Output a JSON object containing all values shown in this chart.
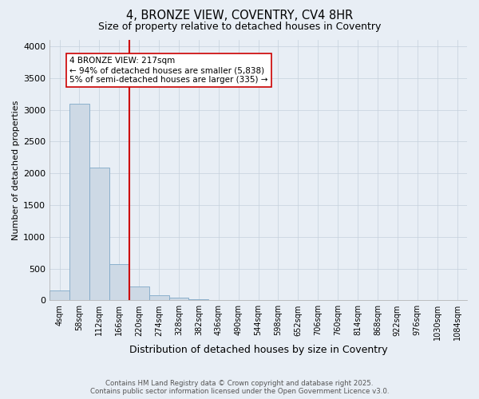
{
  "title": "4, BRONZE VIEW, COVENTRY, CV4 8HR",
  "subtitle": "Size of property relative to detached houses in Coventry",
  "xlabel": "Distribution of detached houses by size in Coventry",
  "ylabel": "Number of detached properties",
  "footer_line1": "Contains HM Land Registry data © Crown copyright and database right 2025.",
  "footer_line2": "Contains public sector information licensed under the Open Government Licence v3.0.",
  "categories": [
    "4sqm",
    "58sqm",
    "112sqm",
    "166sqm",
    "220sqm",
    "274sqm",
    "328sqm",
    "382sqm",
    "436sqm",
    "490sqm",
    "544sqm",
    "598sqm",
    "652sqm",
    "706sqm",
    "760sqm",
    "814sqm",
    "868sqm",
    "922sqm",
    "976sqm",
    "1030sqm",
    "1084sqm"
  ],
  "values": [
    150,
    3100,
    2090,
    570,
    220,
    80,
    40,
    20,
    0,
    0,
    0,
    0,
    0,
    0,
    0,
    0,
    0,
    0,
    0,
    0,
    0
  ],
  "bar_color": "#cdd9e5",
  "bar_edgecolor": "#7fa8c8",
  "vline_x": 4.0,
  "vline_color": "#cc0000",
  "annotation_text": "4 BRONZE VIEW: 217sqm\n← 94% of detached houses are smaller (5,838)\n5% of semi-detached houses are larger (335) →",
  "ylim": [
    0,
    4100
  ],
  "yticks": [
    0,
    500,
    1000,
    1500,
    2000,
    2500,
    3000,
    3500,
    4000
  ],
  "grid_color": "#c5d0dc",
  "background_color": "#e8eef5",
  "plot_bg_color": "#e8eef5",
  "title_fontsize": 10.5,
  "subtitle_fontsize": 9,
  "ylabel_fontsize": 8,
  "xlabel_fontsize": 9,
  "tick_fontsize": 7
}
